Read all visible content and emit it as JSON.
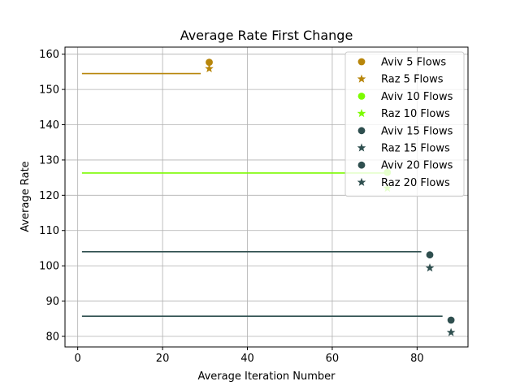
{
  "chart_data": {
    "type": "scatter",
    "title": "Average Rate First Change",
    "xlabel": "Average Iteration Number",
    "ylabel": "Average Rate",
    "xlim": [
      -3,
      92
    ],
    "ylim": [
      77,
      162
    ],
    "xticks": [
      0,
      20,
      40,
      60,
      80
    ],
    "yticks": [
      80,
      90,
      100,
      110,
      120,
      130,
      140,
      150,
      160
    ],
    "grid": true,
    "legend_position": "top-right",
    "hlines": [
      {
        "y": 154.5,
        "x_start": 1,
        "x_end": 29,
        "color": "#b8860b"
      },
      {
        "y": 126.3,
        "x_start": 1,
        "x_end": 73,
        "color": "#7cfc00"
      },
      {
        "y": 104.0,
        "x_start": 1,
        "x_end": 81,
        "color": "#2f4f4f"
      },
      {
        "y": 85.7,
        "x_start": 1,
        "x_end": 86,
        "color": "#2f4f4f"
      }
    ],
    "series": [
      {
        "name": "Aviv 5 Flows",
        "marker": "circle",
        "color": "#b8860b",
        "x": [
          31
        ],
        "y": [
          157.7
        ]
      },
      {
        "name": "Raz 5 Flows",
        "marker": "star",
        "color": "#b8860b",
        "x": [
          31
        ],
        "y": [
          155.9
        ]
      },
      {
        "name": "Aviv 10 Flows",
        "marker": "circle",
        "color": "#7cfc00",
        "x": [
          73
        ],
        "y": [
          126.5
        ]
      },
      {
        "name": "Raz 10 Flows",
        "marker": "star",
        "color": "#7cfc00",
        "x": [
          73
        ],
        "y": [
          122.0
        ]
      },
      {
        "name": "Aviv 15 Flows",
        "marker": "circle",
        "color": "#2f4f4f",
        "x": [
          83
        ],
        "y": [
          103.1
        ]
      },
      {
        "name": "Raz 15 Flows",
        "marker": "star",
        "color": "#2f4f4f",
        "x": [
          83
        ],
        "y": [
          99.4
        ]
      },
      {
        "name": "Aviv 20 Flows",
        "marker": "circle",
        "color": "#2f4f4f",
        "x": [
          88
        ],
        "y": [
          84.6
        ]
      },
      {
        "name": "Raz 20 Flows",
        "marker": "star",
        "color": "#2f4f4f",
        "x": [
          88
        ],
        "y": [
          81.1
        ]
      }
    ]
  }
}
